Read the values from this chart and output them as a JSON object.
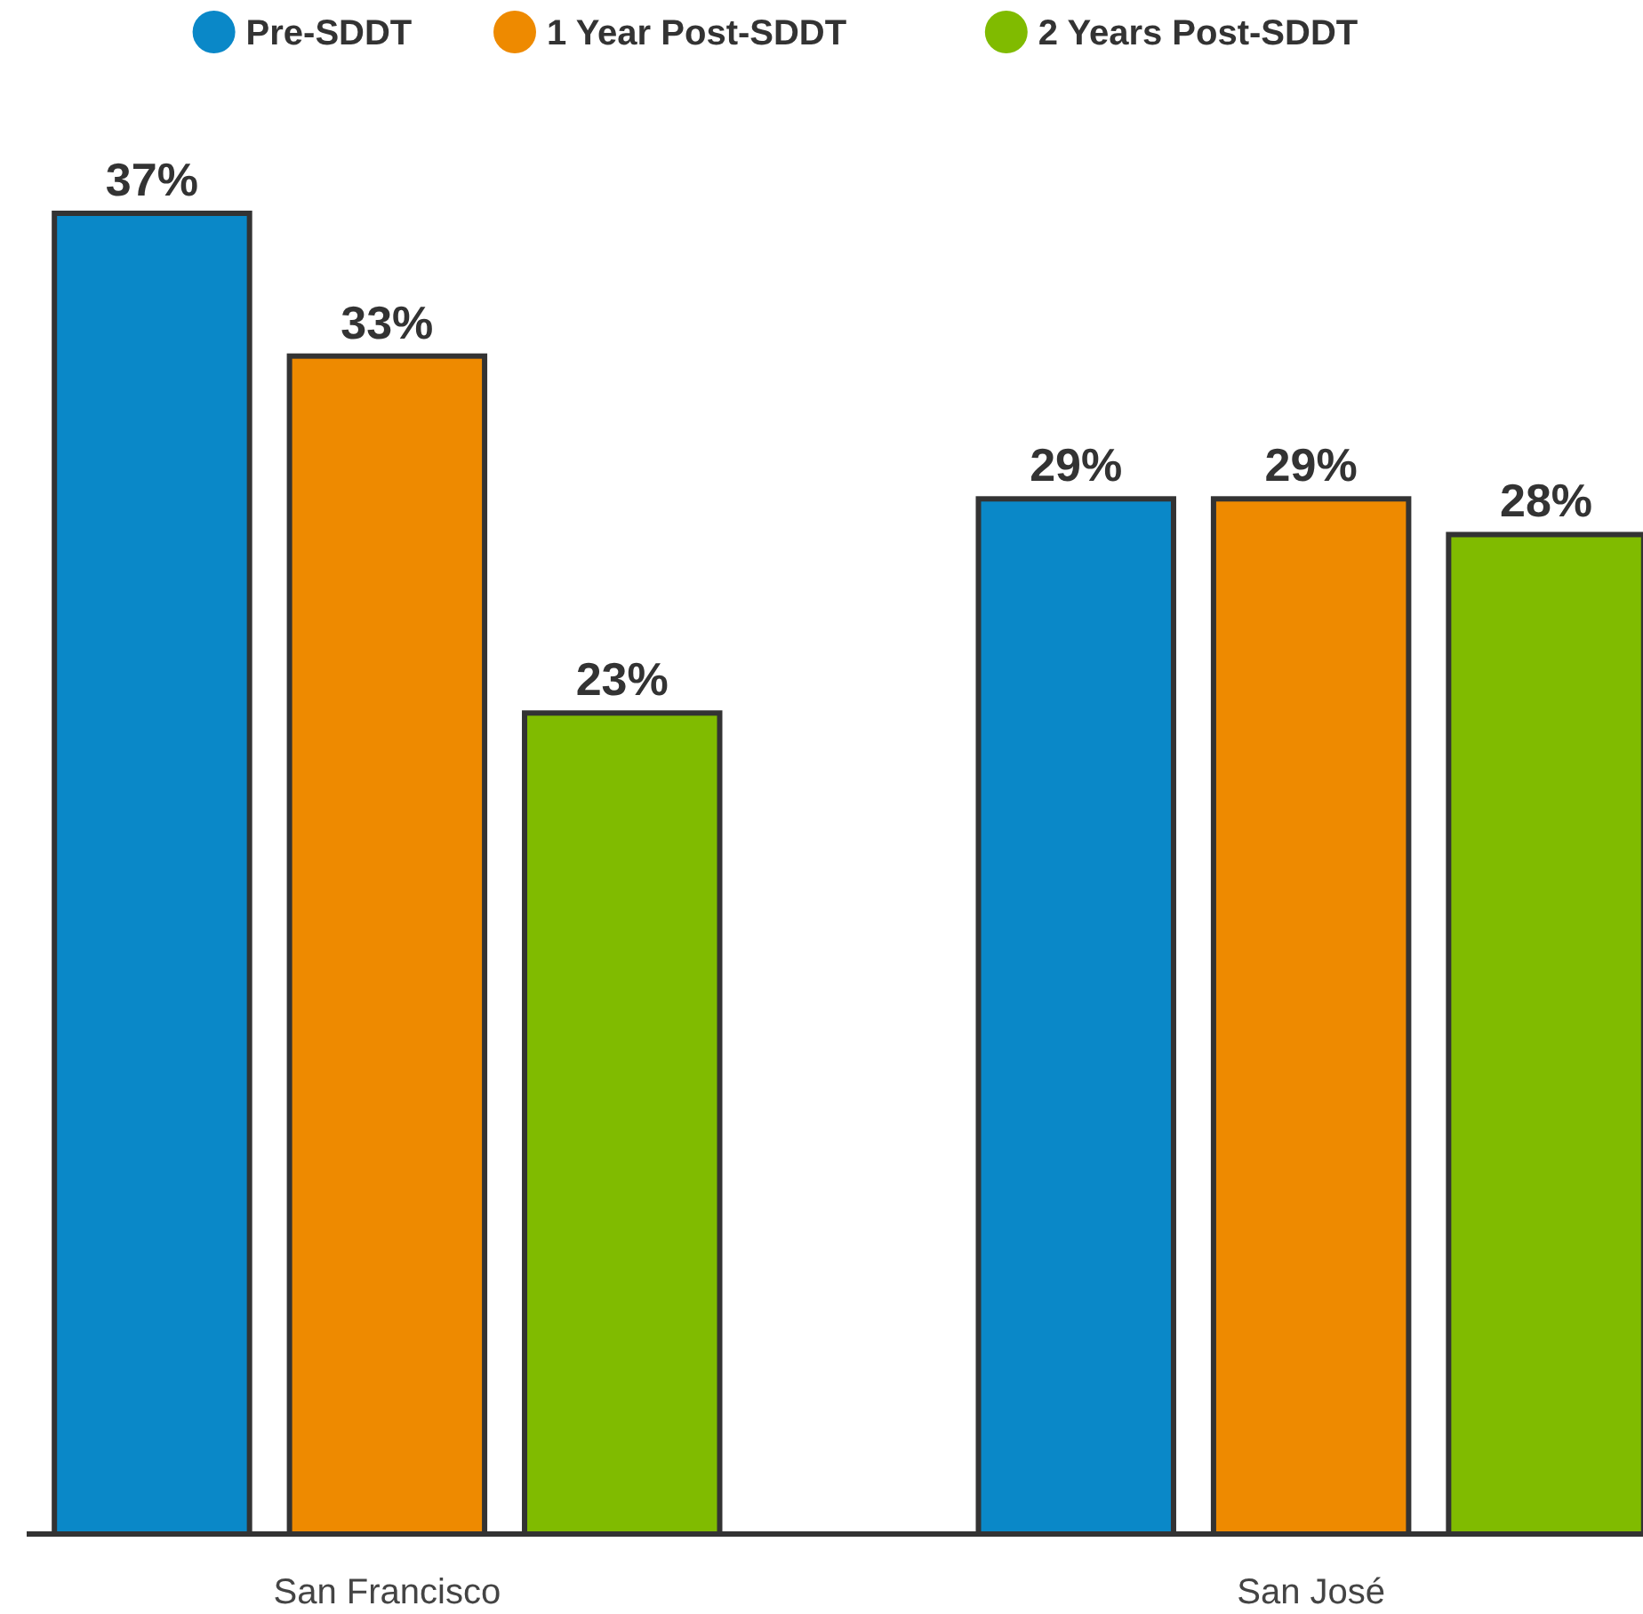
{
  "chart_data": {
    "type": "bar",
    "categories": [
      "San Francisco",
      "San José"
    ],
    "series": [
      {
        "name": "Pre-SDDT",
        "color": "#0a88c8",
        "values": [
          37,
          29
        ],
        "value_labels": [
          "37%",
          "29%"
        ]
      },
      {
        "name": "1 Year Post-SDDT",
        "color": "#ee8a00",
        "values": [
          33,
          29
        ],
        "value_labels": [
          "33%",
          "29%"
        ]
      },
      {
        "name": "2 Years Post-SDDT",
        "color": "#80bb00",
        "values": [
          23,
          28
        ],
        "value_labels": [
          "23%",
          "28%"
        ]
      }
    ],
    "legend": "top"
  }
}
